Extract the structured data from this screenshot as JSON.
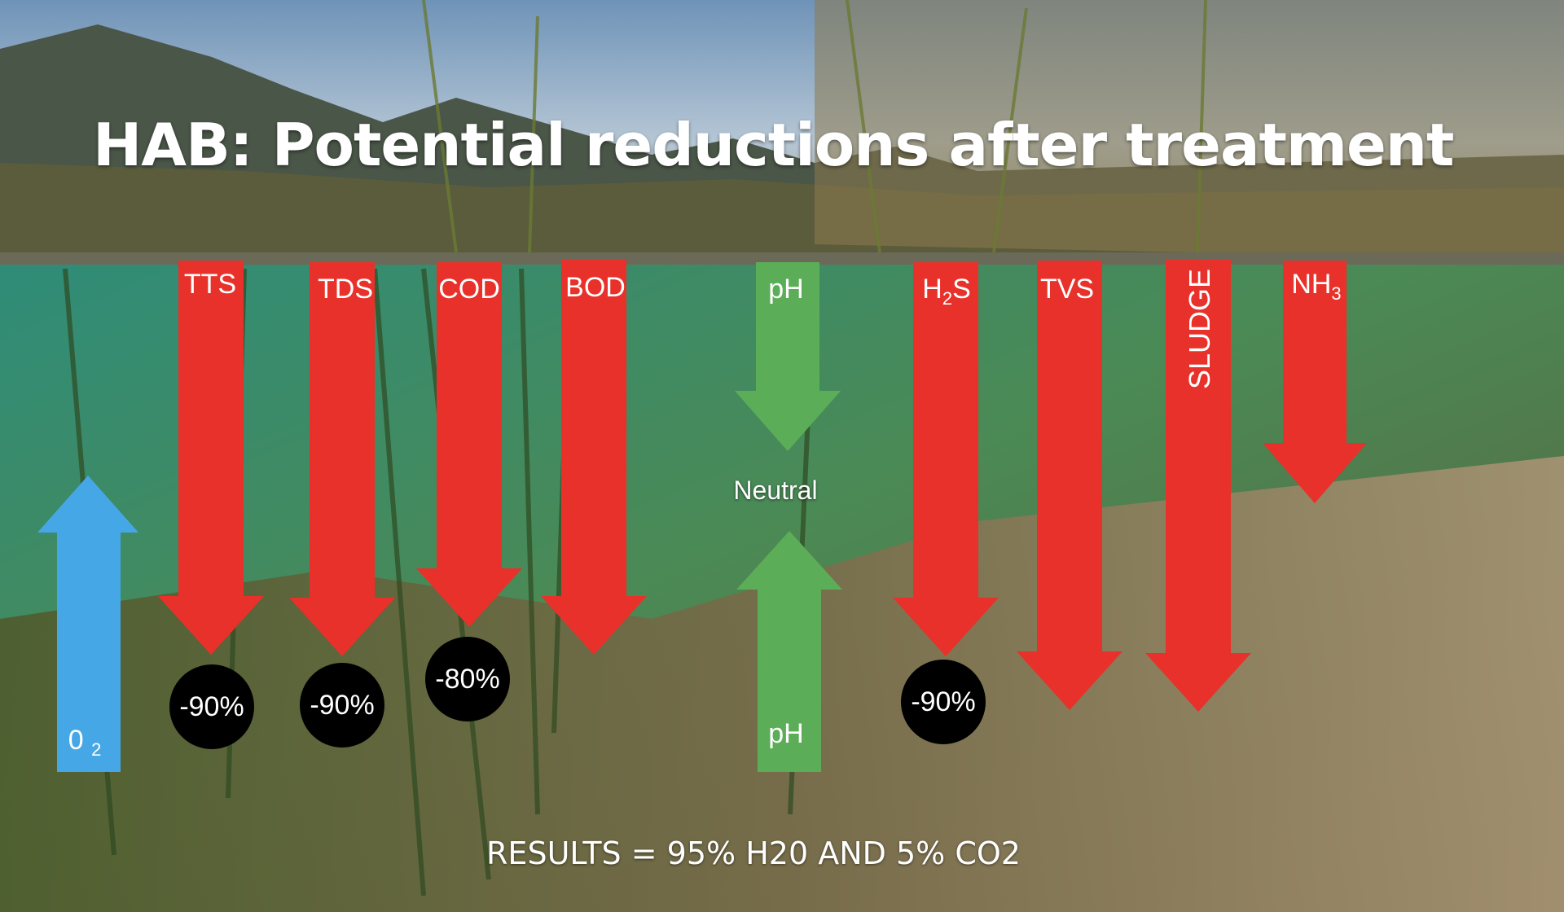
{
  "title": "HAB: Potential reductions after treatment",
  "arrows": [
    {
      "label": "TTS",
      "badge": "-90%",
      "color": "#e8312a"
    },
    {
      "label": "TDS",
      "badge": "-90%",
      "color": "#e8312a"
    },
    {
      "label": "COD",
      "badge": "-80%",
      "color": "#e8312a"
    },
    {
      "label": "BOD",
      "badge": "",
      "color": "#e8312a"
    },
    {
      "label_main": "H",
      "label_sub": "2",
      "label_tail": "S",
      "badge": "-90%",
      "color": "#e8312a"
    },
    {
      "label": "TVS",
      "badge": "",
      "color": "#e8312a"
    },
    {
      "label": "SLUDGE",
      "badge": "",
      "color": "#e8312a"
    },
    {
      "label_main": "NH",
      "label_sub": "3",
      "badge": "",
      "color": "#e8312a"
    }
  ],
  "ph": {
    "top_label": "pH",
    "bottom_label": "pH",
    "center_label": "Neutral",
    "color": "#5cad57"
  },
  "oxygen": {
    "label_main": "0",
    "label_sub": "2",
    "color": "#45a7e6"
  },
  "result": "RESULTS = 95% H20 AND 5% CO2"
}
